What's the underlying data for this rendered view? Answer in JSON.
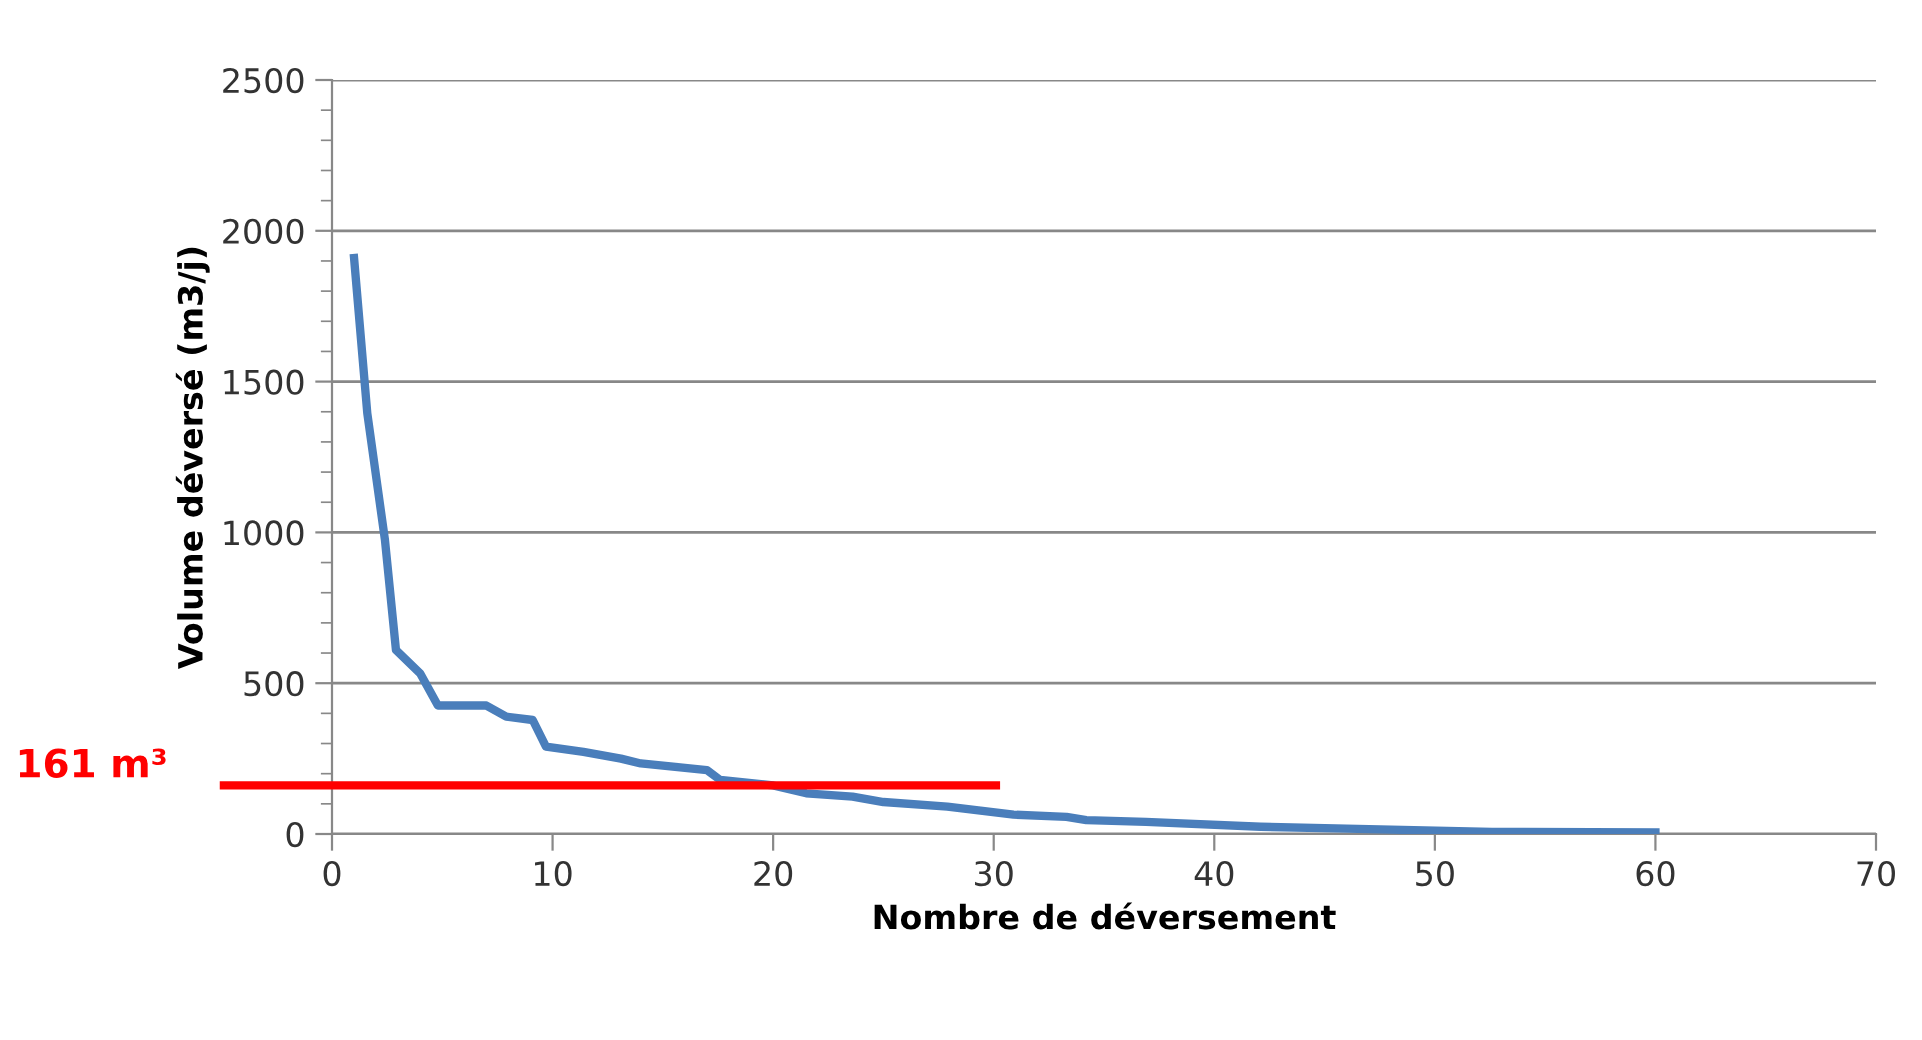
{
  "chart_data": {
    "type": "line",
    "xlabel": "Nombre de déversement",
    "ylabel": "Volume déversé (m3/j)",
    "xlim": [
      0,
      70
    ],
    "xticks": [
      0,
      10,
      20,
      30,
      40,
      50,
      60,
      70
    ],
    "ylim": [
      0,
      2500
    ],
    "yticks": [
      0,
      500,
      1000,
      1500,
      2000,
      2500
    ],
    "grid": "y",
    "marker": "none",
    "line_style": "solid",
    "series": [
      {
        "color": "#4a7ebb",
        "x": [
          1,
          1.6,
          2.4,
          2.9,
          4.0,
          4.8,
          7.0,
          7.9,
          9.1,
          9.7,
          11.4,
          13.1,
          14.0,
          17.0,
          17.6,
          20.0,
          21.5,
          23.6,
          25.0,
          27.9,
          30.9,
          33.3,
          34.2,
          36.9,
          42.1,
          46,
          52.6,
          60
        ],
        "values": [
          1910,
          1395,
          975,
          610,
          532,
          426,
          426,
          389,
          378,
          290,
          272,
          250,
          234,
          212,
          179,
          161,
          135,
          124,
          106,
          91,
          64,
          57,
          46,
          40,
          24,
          18,
          7,
          5
        ]
      }
    ],
    "ref_lines": [
      {
        "axis": "y",
        "value": 161,
        "label": "161 m³",
        "color": "#ff0000",
        "line_style": "solid"
      }
    ]
  }
}
